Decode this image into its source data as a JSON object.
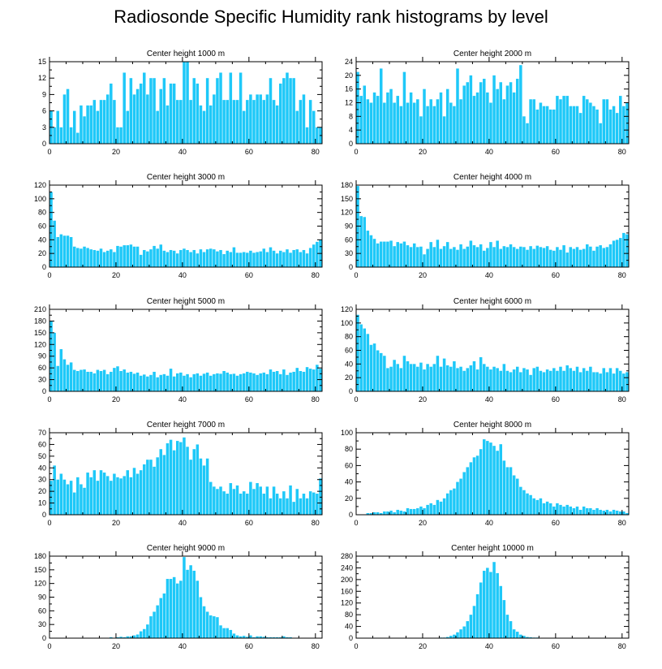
{
  "figure_title": "Radiosonde Specific Humidity rank histograms by level",
  "colors": {
    "bar": "#1ec8f8",
    "axis": "#000000",
    "background": "#ffffff"
  },
  "chart_data": [
    {
      "type": "bar",
      "title": "Center height 1000 m",
      "xlim": [
        0,
        82
      ],
      "ylim": [
        0,
        15
      ],
      "x_ticks": [
        0,
        20,
        40,
        60,
        80
      ],
      "y_ticks": [
        0,
        3,
        6,
        9,
        12,
        15
      ],
      "values": [
        6,
        3,
        6,
        3,
        9,
        10,
        3,
        6,
        2,
        7,
        5,
        7,
        7,
        8,
        6,
        8,
        8,
        9,
        11,
        8,
        3,
        3,
        13,
        6,
        12,
        9,
        10,
        11,
        13,
        9,
        12,
        12,
        6,
        10,
        12,
        7,
        11,
        11,
        8,
        8,
        15,
        15,
        8,
        12,
        11,
        7,
        6,
        12,
        7,
        9,
        12,
        13,
        8,
        8,
        13,
        8,
        8,
        13,
        6,
        8,
        9,
        8,
        9,
        9,
        8,
        9,
        12,
        8,
        7,
        11,
        12,
        13,
        12,
        12,
        6,
        8,
        9,
        3,
        8,
        6,
        3,
        3
      ]
    },
    {
      "type": "bar",
      "title": "Center height 2000 m",
      "xlim": [
        0,
        82
      ],
      "ylim": [
        0,
        24
      ],
      "x_ticks": [
        0,
        20,
        40,
        60,
        80
      ],
      "y_ticks": [
        0,
        4,
        8,
        12,
        16,
        20,
        24
      ],
      "values": [
        21,
        14,
        17,
        13,
        12,
        15,
        14,
        22,
        12,
        15,
        16,
        12,
        14,
        11,
        21,
        12,
        15,
        12,
        13,
        8,
        16,
        11,
        13,
        11,
        13,
        15,
        8,
        16,
        12,
        11,
        22,
        13,
        17,
        18,
        20,
        14,
        15,
        18,
        19,
        15,
        12,
        20,
        16,
        18,
        13,
        17,
        18,
        15,
        19,
        23,
        8,
        6,
        13,
        13,
        10,
        12,
        11,
        11,
        10,
        10,
        14,
        13,
        14,
        14,
        11,
        11,
        11,
        9,
        14,
        13,
        12,
        11,
        10,
        6,
        13,
        13,
        10,
        11,
        9,
        14,
        11,
        12
      ]
    },
    {
      "type": "bar",
      "title": "Center height 3000 m",
      "xlim": [
        0,
        82
      ],
      "ylim": [
        0,
        120
      ],
      "x_ticks": [
        0,
        20,
        40,
        60,
        80
      ],
      "y_ticks": [
        0,
        20,
        40,
        60,
        80,
        100,
        120
      ],
      "values": [
        110,
        68,
        44,
        48,
        46,
        46,
        44,
        30,
        28,
        27,
        30,
        28,
        26,
        25,
        24,
        27,
        22,
        24,
        26,
        22,
        31,
        30,
        32,
        32,
        33,
        30,
        30,
        18,
        25,
        23,
        26,
        31,
        27,
        33,
        24,
        22,
        25,
        24,
        20,
        25,
        27,
        25,
        22,
        25,
        20,
        26,
        22,
        26,
        27,
        26,
        23,
        25,
        19,
        24,
        22,
        29,
        21,
        21,
        22,
        21,
        24,
        21,
        22,
        23,
        27,
        22,
        29,
        24,
        20,
        24,
        22,
        26,
        21,
        25,
        26,
        22,
        25,
        20,
        28,
        33,
        37,
        40
      ]
    },
    {
      "type": "bar",
      "title": "Center height 4000 m",
      "xlim": [
        0,
        82
      ],
      "ylim": [
        0,
        180
      ],
      "x_ticks": [
        0,
        20,
        40,
        60,
        80
      ],
      "y_ticks": [
        0,
        30,
        60,
        90,
        120,
        150,
        180
      ],
      "values": [
        178,
        112,
        110,
        80,
        70,
        62,
        52,
        56,
        56,
        56,
        58,
        46,
        55,
        52,
        56,
        48,
        44,
        52,
        44,
        45,
        28,
        40,
        55,
        44,
        60,
        40,
        46,
        55,
        40,
        44,
        38,
        50,
        40,
        45,
        58,
        48,
        44,
        50,
        36,
        42,
        55,
        44,
        58,
        40,
        46,
        44,
        50,
        44,
        40,
        45,
        44,
        38,
        46,
        40,
        47,
        44,
        42,
        46,
        38,
        36,
        44,
        38,
        48,
        32,
        44,
        40,
        44,
        38,
        40,
        50,
        45,
        36,
        45,
        48,
        42,
        44,
        50,
        58,
        60,
        64,
        75,
        72
      ]
    },
    {
      "type": "bar",
      "title": "Center height 5000 m",
      "xlim": [
        0,
        82
      ],
      "ylim": [
        0,
        210
      ],
      "x_ticks": [
        0,
        20,
        40,
        60,
        80
      ],
      "y_ticks": [
        0,
        30,
        60,
        90,
        120,
        150,
        180,
        210
      ],
      "values": [
        180,
        150,
        65,
        108,
        82,
        68,
        74,
        55,
        52,
        55,
        56,
        50,
        50,
        46,
        55,
        52,
        55,
        44,
        50,
        60,
        64,
        52,
        56,
        48,
        50,
        45,
        48,
        40,
        43,
        38,
        42,
        50,
        36,
        42,
        44,
        40,
        58,
        38,
        46,
        48,
        40,
        44,
        36,
        44,
        46,
        40,
        45,
        48,
        40,
        44,
        46,
        45,
        52,
        48,
        44,
        45,
        40,
        44,
        46,
        50,
        48,
        46,
        42,
        46,
        48,
        44,
        56,
        50,
        52,
        44,
        56,
        42,
        48,
        50,
        60,
        52,
        50,
        62,
        58,
        56,
        68,
        58
      ]
    },
    {
      "type": "bar",
      "title": "Center height 6000 m",
      "xlim": [
        0,
        82
      ],
      "ylim": [
        0,
        120
      ],
      "x_ticks": [
        0,
        20,
        40,
        60,
        80
      ],
      "y_ticks": [
        0,
        20,
        40,
        60,
        80,
        100,
        120
      ],
      "values": [
        112,
        98,
        92,
        84,
        68,
        70,
        60,
        56,
        52,
        34,
        36,
        46,
        40,
        34,
        52,
        44,
        40,
        40,
        36,
        42,
        32,
        40,
        36,
        40,
        52,
        36,
        48,
        38,
        36,
        44,
        34,
        36,
        30,
        34,
        38,
        44,
        32,
        50,
        40,
        36,
        32,
        36,
        34,
        30,
        40,
        30,
        28,
        32,
        36,
        28,
        34,
        32,
        24,
        34,
        36,
        30,
        28,
        32,
        30,
        34,
        30,
        36,
        30,
        38,
        34,
        30,
        36,
        28,
        34,
        30,
        36,
        28,
        28,
        26,
        34,
        28,
        34,
        26,
        34,
        30,
        26,
        28
      ]
    },
    {
      "type": "bar",
      "title": "Center height 7000 m",
      "xlim": [
        0,
        82
      ],
      "ylim": [
        0,
        70
      ],
      "x_ticks": [
        0,
        20,
        40,
        60,
        80
      ],
      "y_ticks": [
        0,
        10,
        20,
        30,
        40,
        50,
        60,
        70
      ],
      "values": [
        29,
        42,
        30,
        35,
        30,
        26,
        29,
        19,
        32,
        26,
        23,
        36,
        32,
        38,
        29,
        38,
        36,
        33,
        29,
        35,
        32,
        31,
        33,
        38,
        32,
        40,
        35,
        38,
        43,
        47,
        47,
        41,
        49,
        56,
        51,
        61,
        64,
        55,
        63,
        62,
        66,
        58,
        47,
        56,
        60,
        48,
        42,
        48,
        28,
        24,
        22,
        24,
        20,
        18,
        27,
        22,
        25,
        18,
        20,
        18,
        28,
        22,
        27,
        24,
        18,
        24,
        14,
        24,
        18,
        14,
        20,
        14,
        25,
        11,
        22,
        14,
        18,
        14,
        20,
        19,
        18,
        31
      ]
    },
    {
      "type": "bar",
      "title": "Center height 8000 m",
      "xlim": [
        0,
        82
      ],
      "ylim": [
        0,
        100
      ],
      "x_ticks": [
        0,
        20,
        40,
        60,
        80
      ],
      "y_ticks": [
        0,
        20,
        40,
        60,
        80,
        100
      ],
      "values": [
        0,
        0,
        0,
        2,
        2,
        3,
        3,
        2,
        4,
        4,
        5,
        3,
        6,
        5,
        4,
        8,
        7,
        7,
        8,
        10,
        8,
        12,
        14,
        12,
        18,
        16,
        20,
        26,
        30,
        32,
        40,
        44,
        52,
        58,
        64,
        70,
        72,
        80,
        92,
        90,
        88,
        84,
        78,
        86,
        66,
        58,
        58,
        48,
        44,
        34,
        30,
        26,
        24,
        20,
        18,
        20,
        14,
        16,
        14,
        10,
        14,
        12,
        10,
        12,
        10,
        8,
        10,
        6,
        10,
        8,
        8,
        6,
        8,
        6,
        5,
        6,
        4,
        6,
        5,
        4,
        4,
        2
      ]
    },
    {
      "type": "bar",
      "title": "Center height 9000 m",
      "xlim": [
        0,
        82
      ],
      "ylim": [
        0,
        180
      ],
      "x_ticks": [
        0,
        20,
        40,
        60,
        80
      ],
      "y_ticks": [
        0,
        30,
        60,
        90,
        120,
        150,
        180
      ],
      "values": [
        0,
        0,
        0,
        0,
        0,
        0,
        0,
        0,
        0,
        0,
        0,
        0,
        0,
        0,
        0,
        0,
        0,
        0,
        2,
        0,
        2,
        3,
        2,
        4,
        4,
        6,
        8,
        15,
        20,
        30,
        48,
        58,
        72,
        88,
        98,
        130,
        130,
        134,
        120,
        126,
        178,
        150,
        160,
        148,
        126,
        90,
        70,
        58,
        50,
        48,
        46,
        28,
        22,
        22,
        18,
        10,
        6,
        4,
        5,
        3,
        6,
        2,
        4,
        4,
        3,
        2,
        2,
        2,
        2,
        2,
        4,
        2,
        2,
        0,
        0,
        0,
        0,
        0,
        0,
        0,
        0,
        0
      ]
    },
    {
      "type": "bar",
      "title": "Center height 10000 m",
      "xlim": [
        0,
        82
      ],
      "ylim": [
        0,
        280
      ],
      "x_ticks": [
        0,
        20,
        40,
        60,
        80
      ],
      "y_ticks": [
        0,
        40,
        80,
        120,
        160,
        200,
        240,
        280
      ],
      "values": [
        0,
        0,
        0,
        0,
        0,
        0,
        0,
        0,
        0,
        0,
        0,
        0,
        0,
        0,
        0,
        0,
        0,
        0,
        0,
        0,
        0,
        0,
        0,
        0,
        0,
        2,
        2,
        4,
        8,
        12,
        20,
        30,
        40,
        58,
        80,
        110,
        150,
        190,
        230,
        240,
        226,
        260,
        222,
        178,
        130,
        80,
        58,
        30,
        22,
        12,
        8,
        4,
        3,
        2,
        2,
        0,
        0,
        0,
        0,
        0,
        0,
        0,
        0,
        0,
        0,
        0,
        0,
        0,
        0,
        0,
        0,
        0,
        0,
        0,
        0,
        0,
        0,
        0,
        0,
        0,
        0,
        0
      ]
    }
  ]
}
